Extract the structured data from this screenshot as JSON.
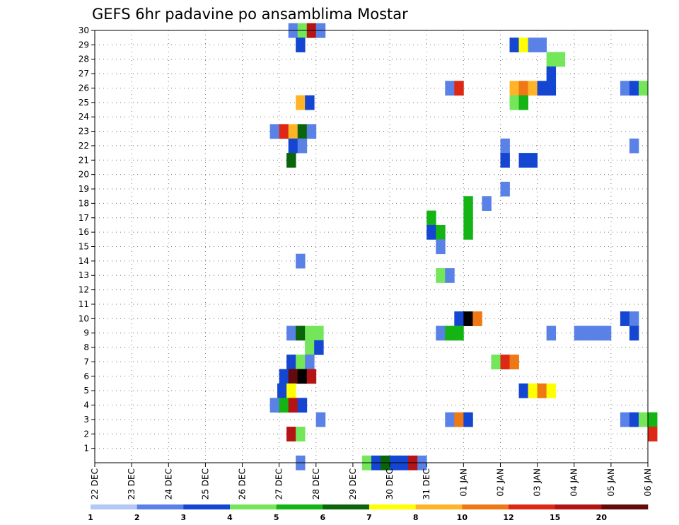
{
  "chart_data": {
    "type": "heatmap",
    "title": "GEFS 6hr padavine po ansamblima Mostar",
    "xlabel": "",
    "ylabel": "",
    "x_tick_labels": [
      "22 DEC",
      "23 DEC",
      "24 DEC",
      "25 DEC",
      "26 DEC",
      "27 DEC",
      "28 DEC",
      "29 DEC",
      "30 DEC",
      "31 DEC",
      "01 JAN",
      "02 JAN",
      "03 JAN",
      "04 JAN",
      "05 JAN",
      "06 JAN"
    ],
    "x_unit": "6-hour step index (0 = 22 DEC 00Z, 4 steps per day)",
    "xlim": [
      0,
      60
    ],
    "y_tick_labels": [
      "1",
      "2",
      "3",
      "4",
      "5",
      "6",
      "7",
      "8",
      "9",
      "10",
      "11",
      "12",
      "13",
      "14",
      "15",
      "16",
      "17",
      "18",
      "19",
      "20",
      "21",
      "22",
      "23",
      "24",
      "25",
      "26",
      "27",
      "28",
      "29",
      "30"
    ],
    "ylim": [
      0,
      30
    ],
    "grid": true,
    "colorbar": {
      "position": "bottom",
      "bounds": [
        1,
        2,
        3,
        4,
        5,
        6,
        7,
        8,
        10,
        12,
        15,
        20
      ],
      "labels": [
        "1",
        "2",
        "3",
        "4",
        "5",
        "6",
        "7",
        "8",
        "10",
        "12",
        "15",
        "20"
      ],
      "colors": [
        "#b4c8f5",
        "#5a82e6",
        "#1446d2",
        "#73e65a",
        "#14b414",
        "#0a640a",
        "#ffff00",
        "#ffb428",
        "#f07814",
        "#dc2814",
        "#b41414",
        "#640a0a"
      ]
    },
    "cells": [
      [
        21,
        30,
        1
      ],
      [
        22,
        30,
        3
      ],
      [
        23,
        30,
        10
      ],
      [
        24,
        30,
        1
      ],
      [
        21.8,
        29,
        2
      ],
      [
        45,
        29,
        2
      ],
      [
        46,
        29,
        6
      ],
      [
        47,
        29,
        1
      ],
      [
        48,
        29,
        1
      ],
      [
        49,
        28,
        3
      ],
      [
        50,
        28,
        3
      ],
      [
        49,
        27,
        2
      ],
      [
        38,
        26,
        1
      ],
      [
        39,
        26,
        9
      ],
      [
        45,
        26,
        7
      ],
      [
        46,
        26,
        8
      ],
      [
        47,
        26,
        7
      ],
      [
        48,
        26,
        2
      ],
      [
        49,
        26,
        2
      ],
      [
        57,
        26,
        1
      ],
      [
        58,
        26,
        2
      ],
      [
        59,
        26,
        3
      ],
      [
        21.8,
        25,
        7
      ],
      [
        22.8,
        25,
        2
      ],
      [
        45,
        25,
        3
      ],
      [
        46,
        25,
        4
      ],
      [
        19,
        23,
        1
      ],
      [
        20,
        23,
        9
      ],
      [
        21,
        23,
        7
      ],
      [
        22,
        23,
        5
      ],
      [
        23,
        23,
        1
      ],
      [
        21,
        22,
        2
      ],
      [
        22,
        22,
        1
      ],
      [
        44,
        22,
        1
      ],
      [
        58,
        22,
        1
      ],
      [
        20.8,
        21,
        5
      ],
      [
        44,
        21,
        2
      ],
      [
        46,
        21,
        2
      ],
      [
        47,
        21,
        2
      ],
      [
        44,
        19,
        1
      ],
      [
        40,
        18,
        4
      ],
      [
        42,
        18,
        1
      ],
      [
        36,
        17,
        4
      ],
      [
        40,
        17,
        4
      ],
      [
        36,
        16,
        2
      ],
      [
        37,
        16,
        4
      ],
      [
        40,
        16,
        4
      ],
      [
        37,
        15,
        1
      ],
      [
        21.8,
        14,
        1
      ],
      [
        37,
        13,
        3
      ],
      [
        38,
        13,
        1
      ],
      [
        39,
        10,
        2
      ],
      [
        40,
        10,
        12
      ],
      [
        41,
        10,
        8
      ],
      [
        57,
        10,
        2
      ],
      [
        58,
        10,
        1
      ],
      [
        20.8,
        9,
        1
      ],
      [
        21.8,
        9,
        5
      ],
      [
        22.8,
        9,
        3
      ],
      [
        23.8,
        9,
        3
      ],
      [
        37,
        9,
        1
      ],
      [
        38,
        9,
        4
      ],
      [
        39,
        9,
        4
      ],
      [
        49,
        9,
        1
      ],
      [
        52,
        9,
        1
      ],
      [
        53,
        9,
        1
      ],
      [
        54,
        9,
        1
      ],
      [
        55,
        9,
        1
      ],
      [
        58,
        9,
        2
      ],
      [
        22.8,
        8,
        3
      ],
      [
        23.8,
        8,
        2
      ],
      [
        20.8,
        7,
        2
      ],
      [
        21.8,
        7,
        3
      ],
      [
        22.8,
        7,
        1
      ],
      [
        43,
        7,
        3
      ],
      [
        44,
        7,
        9
      ],
      [
        45,
        7,
        8
      ],
      [
        20,
        6,
        2
      ],
      [
        21,
        6,
        11
      ],
      [
        22,
        6,
        12
      ],
      [
        23,
        6,
        10
      ],
      [
        19.8,
        5,
        2
      ],
      [
        20.8,
        5,
        6
      ],
      [
        46,
        5,
        2
      ],
      [
        47,
        5,
        6
      ],
      [
        48,
        5,
        8
      ],
      [
        49,
        5,
        6
      ],
      [
        19,
        4,
        1
      ],
      [
        20,
        4,
        4
      ],
      [
        21,
        4,
        10
      ],
      [
        22,
        4,
        2
      ],
      [
        24,
        3,
        1
      ],
      [
        38,
        3,
        1
      ],
      [
        39,
        3,
        8
      ],
      [
        40,
        3,
        2
      ],
      [
        57,
        3,
        1
      ],
      [
        58,
        3,
        2
      ],
      [
        59,
        3,
        3
      ],
      [
        60,
        3,
        4
      ],
      [
        20.8,
        2,
        10
      ],
      [
        21.8,
        2,
        3
      ],
      [
        60,
        2,
        9
      ],
      [
        21.8,
        0,
        1
      ],
      [
        29,
        0,
        3
      ],
      [
        30,
        0,
        2
      ],
      [
        31,
        0,
        5
      ],
      [
        32,
        0,
        2
      ],
      [
        33,
        0,
        2
      ],
      [
        34,
        0,
        10
      ],
      [
        35,
        0,
        1
      ]
    ]
  }
}
